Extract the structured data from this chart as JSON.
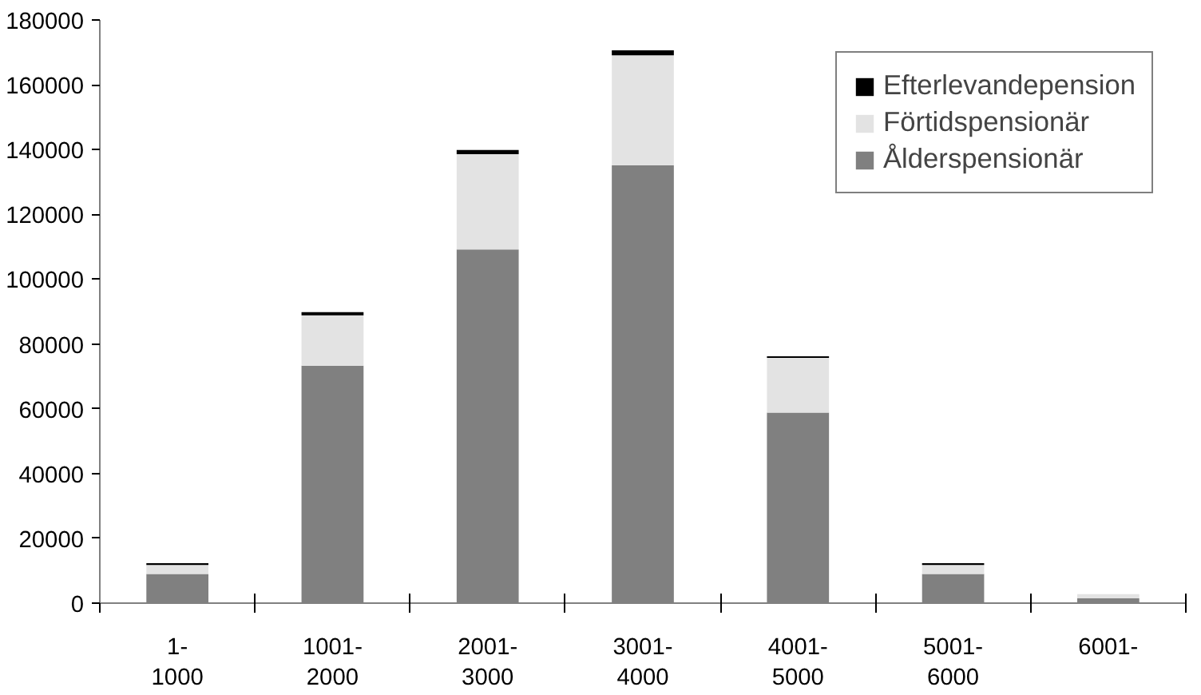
{
  "chart_data": {
    "type": "bar",
    "stacked": true,
    "categories": [
      "1-\n1000",
      "1001-\n2000",
      "2001-\n3000",
      "3001-\n4000",
      "4001-\n5000",
      "5001-\n6000",
      "6001-"
    ],
    "series": [
      {
        "name": "Ålderspensionär",
        "color": "#808080",
        "values": [
          9000,
          73300,
          109200,
          135100,
          58800,
          9000,
          1500
        ]
      },
      {
        "name": "Förtidspensionär",
        "color": "#e3e3e3",
        "values": [
          2800,
          15500,
          29400,
          34000,
          16900,
          2800,
          1300
        ]
      },
      {
        "name": "Efterlevandepension",
        "color": "#000000",
        "values": [
          500,
          1000,
          1300,
          1500,
          500,
          500,
          null
        ]
      }
    ],
    "ylim": [
      0,
      180000
    ],
    "yticks": [
      0,
      20000,
      40000,
      60000,
      80000,
      100000,
      120000,
      140000,
      160000,
      180000
    ],
    "grid": false,
    "legend": "top right"
  }
}
